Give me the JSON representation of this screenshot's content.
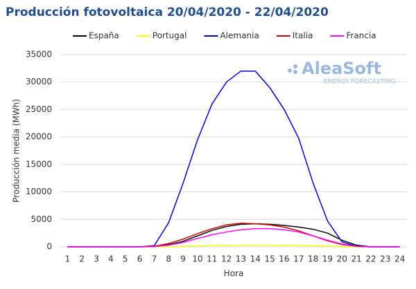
{
  "chart_data": {
    "type": "line",
    "title": "Producción fotovoltaica 20/04/2020 - 22/04/2020",
    "y_label": "Producción media (MWh)",
    "x_label": "Hora",
    "logo": "AleaSoft",
    "logo_sub": "ENERGY FORECASTING",
    "categories": [
      1,
      2,
      3,
      4,
      5,
      6,
      7,
      8,
      9,
      10,
      11,
      12,
      13,
      14,
      15,
      16,
      17,
      18,
      19,
      20,
      21,
      22,
      23,
      24
    ],
    "series": [
      {
        "name": "España",
        "color": "#000000",
        "values": [
          0,
          0,
          0,
          0,
          0,
          0,
          50,
          400,
          1000,
          2000,
          3000,
          3700,
          4100,
          4200,
          4100,
          3900,
          3600,
          3200,
          2500,
          1200,
          300,
          0,
          0,
          0
        ]
      },
      {
        "name": "Portugal",
        "color": "#ffff00",
        "values": [
          0,
          0,
          0,
          0,
          0,
          0,
          0,
          30,
          100,
          170,
          230,
          280,
          300,
          310,
          300,
          280,
          250,
          200,
          130,
          60,
          10,
          0,
          0,
          0
        ]
      },
      {
        "name": "Alemania",
        "color": "#0000cc",
        "values": [
          0,
          0,
          0,
          0,
          0,
          0,
          200,
          4400,
          11600,
          19500,
          26000,
          30000,
          32000,
          32000,
          29000,
          25000,
          19800,
          11600,
          4700,
          900,
          100,
          0,
          0,
          0
        ]
      },
      {
        "name": "Italia",
        "color": "#cc0000",
        "values": [
          0,
          0,
          0,
          0,
          0,
          0,
          100,
          600,
          1400,
          2400,
          3300,
          4000,
          4300,
          4200,
          4000,
          3600,
          2900,
          2000,
          1100,
          400,
          100,
          0,
          0,
          0
        ]
      },
      {
        "name": "Francia",
        "color": "#ff00ff",
        "values": [
          0,
          0,
          0,
          0,
          0,
          0,
          50,
          300,
          800,
          1500,
          2200,
          2700,
          3100,
          3300,
          3300,
          3100,
          2700,
          2000,
          1200,
          500,
          100,
          0,
          0,
          0
        ]
      }
    ],
    "ylim": [
      0,
      35000
    ],
    "yticks": [
      0,
      5000,
      10000,
      15000,
      20000,
      25000,
      30000,
      35000
    ],
    "grid": true
  }
}
